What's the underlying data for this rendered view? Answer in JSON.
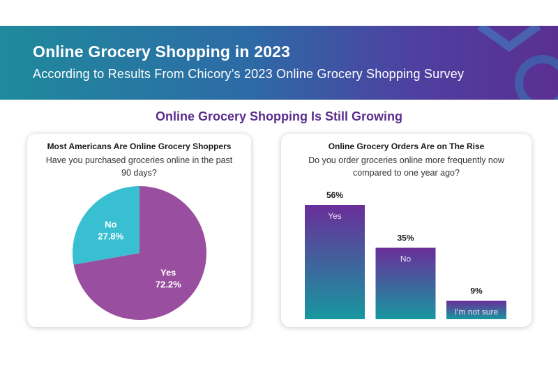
{
  "banner": {
    "title": "Online Grocery Shopping in 2023",
    "subtitle": "According to Results From Chicory’s 2023 Online Grocery Shopping Survey"
  },
  "section": {
    "title": "Online Grocery Shopping Is Still Growing"
  },
  "colors": {
    "purple": "#9a4ea0",
    "cyan": "#38c0d2",
    "bar_top": "#6a2e9a",
    "bar_bottom": "#17979f",
    "heading_purple": "#5b2d8e"
  },
  "chart_data": [
    {
      "type": "pie",
      "title": "Most Americans Are Online Grocery Shoppers",
      "subtitle": "Have you purchased groceries online in the past 90 days?",
      "slices": [
        {
          "label": "Yes",
          "value": 72.2,
          "value_label": "72.2%",
          "color": "#9a4ea0"
        },
        {
          "label": "No",
          "value": 27.8,
          "value_label": "27.8%",
          "color": "#38c0d2"
        }
      ]
    },
    {
      "type": "bar",
      "title": "Online Grocery Orders Are on The Rise",
      "subtitle": "Do you order groceries online more frequently now compared to one year ago?",
      "categories": [
        "Yes",
        "No",
        "I'm not sure"
      ],
      "values": [
        56,
        35,
        9
      ],
      "value_labels": [
        "56%",
        "35%",
        "9%"
      ],
      "ylim": [
        0,
        56
      ]
    }
  ]
}
